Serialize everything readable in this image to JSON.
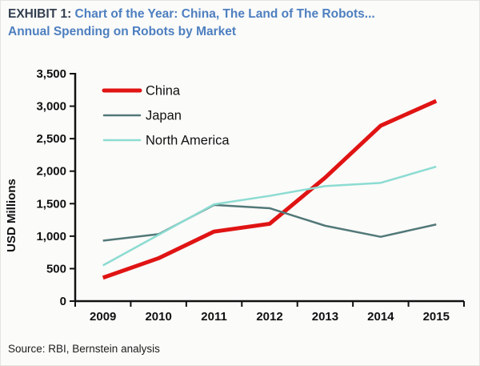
{
  "header": {
    "exhibit_label": "EXHIBIT 1:",
    "title_line1": "Chart of the Year:  China, The Land of The Robots...",
    "title_line2": "Annual Spending on Robots by Market"
  },
  "source": "Source: RBI, Bernstein analysis",
  "colors": {
    "exhibit_label": "#333f50",
    "title_blue": "#4d7fc0",
    "axis": "#111111",
    "tick_text": "#111111",
    "legend_text": "#111111",
    "china": "#e01414",
    "japan": "#527878",
    "north_america": "#8cdcd2"
  },
  "chart_data": {
    "type": "line",
    "title": "Annual Spending on Robots by Market",
    "xlabel": "",
    "ylabel": "USD Millions",
    "ylim": [
      0,
      3500
    ],
    "ytick_step": 500,
    "ytick_labels": [
      "0",
      "500",
      "1,000",
      "1,500",
      "2,000",
      "2,500",
      "3,000",
      "3,500"
    ],
    "categories": [
      "2009",
      "2010",
      "2011",
      "2012",
      "2013",
      "2014",
      "2015"
    ],
    "grid": false,
    "legend_position": "inside-top-left",
    "series": [
      {
        "name": "China",
        "color": "#e01414",
        "line_width": 5,
        "values": [
          360,
          660,
          1070,
          1190,
          1900,
          2700,
          3080
        ]
      },
      {
        "name": "Japan",
        "color": "#527878",
        "line_width": 2.5,
        "values": [
          930,
          1030,
          1480,
          1430,
          1160,
          990,
          1180
        ]
      },
      {
        "name": "North America",
        "color": "#8cdcd2",
        "line_width": 2.5,
        "values": [
          550,
          1020,
          1490,
          1620,
          1770,
          1820,
          2070
        ]
      }
    ]
  }
}
